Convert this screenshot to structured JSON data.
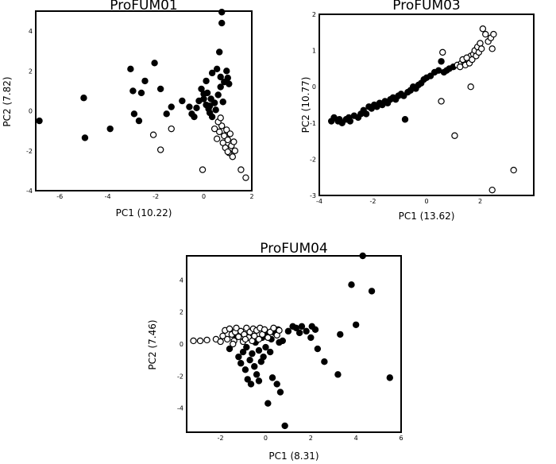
{
  "chart_data": [
    {
      "type": "scatter",
      "title": "ProFUM01",
      "xlabel": "PC1 (10.22)",
      "ylabel": "PC2 (7.82)",
      "xlim": [
        -7,
        2
      ],
      "ylim": [
        -4,
        5
      ],
      "xticks": [
        -6,
        -4,
        -2,
        0,
        2
      ],
      "yticks": [
        -4,
        -2,
        0,
        2,
        4
      ],
      "grid": false,
      "legend": "none",
      "series": [
        {
          "marker": "filled",
          "color": "#000000",
          "points": [
            [
              -6.85,
              -0.5
            ],
            [
              -5.0,
              0.65
            ],
            [
              -4.95,
              -1.35
            ],
            [
              -3.9,
              -0.9
            ],
            [
              -3.05,
              2.1
            ],
            [
              -2.95,
              1.0
            ],
            [
              -2.9,
              -0.15
            ],
            [
              -2.7,
              -0.5
            ],
            [
              -2.6,
              0.9
            ],
            [
              -2.45,
              1.5
            ],
            [
              -2.05,
              2.4
            ],
            [
              -1.8,
              1.1
            ],
            [
              -1.55,
              -0.15
            ],
            [
              -1.35,
              0.2
            ],
            [
              -0.9,
              0.5
            ],
            [
              -0.6,
              0.2
            ],
            [
              -0.5,
              -0.15
            ],
            [
              -0.4,
              -0.3
            ],
            [
              -0.3,
              0.15
            ],
            [
              -0.2,
              0.5
            ],
            [
              -0.1,
              1.1
            ],
            [
              0.0,
              0.85
            ],
            [
              0.0,
              0.6
            ],
            [
              0.1,
              0.3
            ],
            [
              0.15,
              0.9
            ],
            [
              0.2,
              0.1
            ],
            [
              0.25,
              -0.1
            ],
            [
              0.3,
              0.6
            ],
            [
              0.35,
              1.9
            ],
            [
              0.35,
              -0.3
            ],
            [
              0.45,
              0.4
            ],
            [
              0.5,
              0.05
            ],
            [
              0.55,
              2.1
            ],
            [
              0.6,
              0.8
            ],
            [
              0.65,
              2.95
            ],
            [
              0.7,
              1.7
            ],
            [
              0.7,
              1.2
            ],
            [
              0.75,
              4.95
            ],
            [
              0.75,
              4.4
            ],
            [
              0.8,
              0.45
            ],
            [
              0.85,
              1.45
            ],
            [
              0.95,
              2.0
            ],
            [
              1.0,
              1.65
            ],
            [
              1.05,
              1.35
            ],
            [
              0.1,
              1.5
            ],
            [
              0.25,
              0.25
            ]
          ]
        },
        {
          "marker": "open",
          "color": "#000000",
          "points": [
            [
              -2.1,
              -1.2
            ],
            [
              -1.8,
              -1.95
            ],
            [
              -1.35,
              -0.9
            ],
            [
              -0.05,
              -2.95
            ],
            [
              0.45,
              -0.9
            ],
            [
              0.55,
              -1.4
            ],
            [
              0.65,
              -1.05
            ],
            [
              0.75,
              -0.75
            ],
            [
              0.8,
              -1.6
            ],
            [
              0.85,
              -1.25
            ],
            [
              0.9,
              -1.85
            ],
            [
              0.95,
              -0.95
            ],
            [
              1.0,
              -1.45
            ],
            [
              1.05,
              -2.1
            ],
            [
              1.1,
              -1.15
            ],
            [
              1.15,
              -1.75
            ],
            [
              1.2,
              -2.3
            ],
            [
              1.25,
              -1.55
            ],
            [
              1.3,
              -2.0
            ],
            [
              1.55,
              -2.95
            ],
            [
              1.75,
              -3.35
            ],
            [
              0.6,
              -0.55
            ],
            [
              0.7,
              -0.35
            ],
            [
              1.0,
              -2.05
            ]
          ]
        }
      ]
    },
    {
      "type": "scatter",
      "title": "ProFUM03",
      "xlabel": "PC1 (13.62)",
      "ylabel": "PC2 (10.77)",
      "xlim": [
        -4,
        4
      ],
      "ylim": [
        -3,
        2
      ],
      "xticks": [
        -4,
        -2,
        0,
        2
      ],
      "yticks": [
        -3,
        -2,
        -1,
        0,
        1,
        2
      ],
      "grid": false,
      "legend": "none",
      "series": [
        {
          "marker": "filled",
          "color": "#000000",
          "points": [
            [
              -3.55,
              -0.95
            ],
            [
              -3.45,
              -0.85
            ],
            [
              -3.3,
              -0.95
            ],
            [
              -3.15,
              -1.0
            ],
            [
              -3.0,
              -0.9
            ],
            [
              -2.85,
              -0.95
            ],
            [
              -2.7,
              -0.8
            ],
            [
              -2.55,
              -0.85
            ],
            [
              -2.45,
              -0.75
            ],
            [
              -2.35,
              -0.65
            ],
            [
              -2.25,
              -0.75
            ],
            [
              -2.15,
              -0.55
            ],
            [
              -2.05,
              -0.6
            ],
            [
              -1.95,
              -0.5
            ],
            [
              -1.85,
              -0.55
            ],
            [
              -1.75,
              -0.45
            ],
            [
              -1.65,
              -0.5
            ],
            [
              -1.55,
              -0.4
            ],
            [
              -1.45,
              -0.45
            ],
            [
              -1.35,
              -0.35
            ],
            [
              -1.25,
              -0.3
            ],
            [
              -1.15,
              -0.35
            ],
            [
              -1.05,
              -0.25
            ],
            [
              -0.95,
              -0.2
            ],
            [
              -0.85,
              -0.25
            ],
            [
              -0.8,
              -0.9
            ],
            [
              -0.7,
              -0.15
            ],
            [
              -0.6,
              -0.1
            ],
            [
              -0.5,
              0.0
            ],
            [
              -0.4,
              -0.05
            ],
            [
              -0.3,
              0.05
            ],
            [
              -0.2,
              0.1
            ],
            [
              -0.1,
              0.2
            ],
            [
              0.0,
              0.25
            ],
            [
              0.15,
              0.3
            ],
            [
              0.3,
              0.4
            ],
            [
              0.45,
              0.45
            ],
            [
              0.55,
              0.7
            ],
            [
              0.65,
              0.4
            ],
            [
              0.75,
              0.45
            ],
            [
              0.85,
              0.5
            ],
            [
              1.0,
              0.55
            ],
            [
              -3.25,
              -0.9
            ],
            [
              -2.9,
              -0.85
            ]
          ]
        },
        {
          "marker": "open",
          "color": "#000000",
          "points": [
            [
              0.55,
              -0.4
            ],
            [
              0.6,
              0.95
            ],
            [
              1.05,
              -1.35
            ],
            [
              1.15,
              0.6
            ],
            [
              1.3,
              0.65
            ],
            [
              1.4,
              0.7
            ],
            [
              1.45,
              0.6
            ],
            [
              1.55,
              0.75
            ],
            [
              1.6,
              0.65
            ],
            [
              1.65,
              0.85
            ],
            [
              1.7,
              0.75
            ],
            [
              1.75,
              0.9
            ],
            [
              1.8,
              1.0
            ],
            [
              1.85,
              0.85
            ],
            [
              1.9,
              1.1
            ],
            [
              1.95,
              0.95
            ],
            [
              2.0,
              1.2
            ],
            [
              2.05,
              1.05
            ],
            [
              2.1,
              1.6
            ],
            [
              2.2,
              1.45
            ],
            [
              2.3,
              1.25
            ],
            [
              2.4,
              1.35
            ],
            [
              2.45,
              1.05
            ],
            [
              2.5,
              1.45
            ],
            [
              1.65,
              0.0
            ],
            [
              2.45,
              -2.85
            ],
            [
              3.25,
              -2.3
            ],
            [
              1.25,
              0.55
            ],
            [
              1.35,
              0.75
            ],
            [
              1.5,
              0.8
            ]
          ]
        }
      ]
    },
    {
      "type": "scatter",
      "title": "ProFUM04",
      "xlabel": "PC1 (8.31)",
      "ylabel": "PC2 (7.46)",
      "xlim": [
        -3.5,
        6
      ],
      "ylim": [
        -5.5,
        5.5
      ],
      "xticks": [
        -2,
        0,
        2,
        4,
        6
      ],
      "yticks": [
        -4,
        -2,
        0,
        2,
        4
      ],
      "grid": false,
      "legend": "none",
      "series": [
        {
          "marker": "filled",
          "color": "#000000",
          "points": [
            [
              -1.6,
              -0.3
            ],
            [
              -1.3,
              0.5
            ],
            [
              -1.2,
              -0.8
            ],
            [
              -1.1,
              -1.2
            ],
            [
              -1.0,
              -0.5
            ],
            [
              -0.9,
              -1.6
            ],
            [
              -0.85,
              -0.2
            ],
            [
              -0.8,
              -2.2
            ],
            [
              -0.7,
              -1.0
            ],
            [
              -0.65,
              -2.5
            ],
            [
              -0.6,
              -0.6
            ],
            [
              -0.5,
              -1.4
            ],
            [
              -0.45,
              0.1
            ],
            [
              -0.4,
              -1.9
            ],
            [
              -0.3,
              -0.4
            ],
            [
              -0.2,
              -1.1
            ],
            [
              -0.15,
              0.4
            ],
            [
              -0.1,
              -0.8
            ],
            [
              0.0,
              -0.2
            ],
            [
              0.05,
              0.6
            ],
            [
              0.1,
              -3.7
            ],
            [
              0.2,
              -0.5
            ],
            [
              0.25,
              0.3
            ],
            [
              0.3,
              -2.1
            ],
            [
              0.4,
              0.7
            ],
            [
              0.5,
              -2.5
            ],
            [
              0.6,
              0.1
            ],
            [
              0.65,
              -3.0
            ],
            [
              0.85,
              -5.1
            ],
            [
              0.3,
              0.8
            ],
            [
              0.55,
              0.9
            ],
            [
              0.75,
              0.2
            ],
            [
              1.0,
              0.8
            ],
            [
              1.2,
              1.1
            ],
            [
              1.35,
              1.0
            ],
            [
              1.5,
              0.7
            ],
            [
              1.6,
              1.1
            ],
            [
              1.8,
              0.8
            ],
            [
              2.0,
              0.4
            ],
            [
              2.05,
              1.1
            ],
            [
              2.2,
              0.9
            ],
            [
              2.3,
              -0.3
            ],
            [
              2.6,
              -1.1
            ],
            [
              3.2,
              -1.9
            ],
            [
              3.3,
              0.6
            ],
            [
              3.8,
              3.7
            ],
            [
              4.0,
              1.2
            ],
            [
              4.3,
              5.5
            ],
            [
              4.7,
              3.3
            ],
            [
              5.5,
              -2.1
            ],
            [
              -0.3,
              -2.3
            ]
          ]
        },
        {
          "marker": "open",
          "color": "#000000",
          "points": [
            [
              -3.2,
              0.2
            ],
            [
              -2.9,
              0.2
            ],
            [
              -2.6,
              0.25
            ],
            [
              -2.2,
              0.3
            ],
            [
              -2.0,
              0.15
            ],
            [
              -1.9,
              0.5
            ],
            [
              -1.8,
              0.85
            ],
            [
              -1.7,
              0.3
            ],
            [
              -1.6,
              0.95
            ],
            [
              -1.5,
              0.6
            ],
            [
              -1.4,
              0.2
            ],
            [
              -1.35,
              0.75
            ],
            [
              -1.3,
              1.0
            ],
            [
              -1.2,
              0.45
            ],
            [
              -1.1,
              0.8
            ],
            [
              -1.0,
              0.15
            ],
            [
              -0.95,
              0.6
            ],
            [
              -0.85,
              1.0
            ],
            [
              -0.75,
              0.4
            ],
            [
              -0.7,
              0.75
            ],
            [
              -0.6,
              0.2
            ],
            [
              -0.55,
              0.95
            ],
            [
              -0.5,
              0.5
            ],
            [
              -0.4,
              0.85
            ],
            [
              -0.3,
              0.3
            ],
            [
              -0.25,
              1.0
            ],
            [
              -0.15,
              0.6
            ],
            [
              -0.05,
              0.9
            ],
            [
              0.1,
              0.4
            ],
            [
              0.2,
              0.75
            ],
            [
              0.35,
              1.0
            ],
            [
              0.5,
              0.55
            ],
            [
              0.6,
              0.85
            ],
            [
              -0.9,
              0.3
            ],
            [
              -1.45,
              0.0
            ]
          ]
        }
      ]
    }
  ]
}
